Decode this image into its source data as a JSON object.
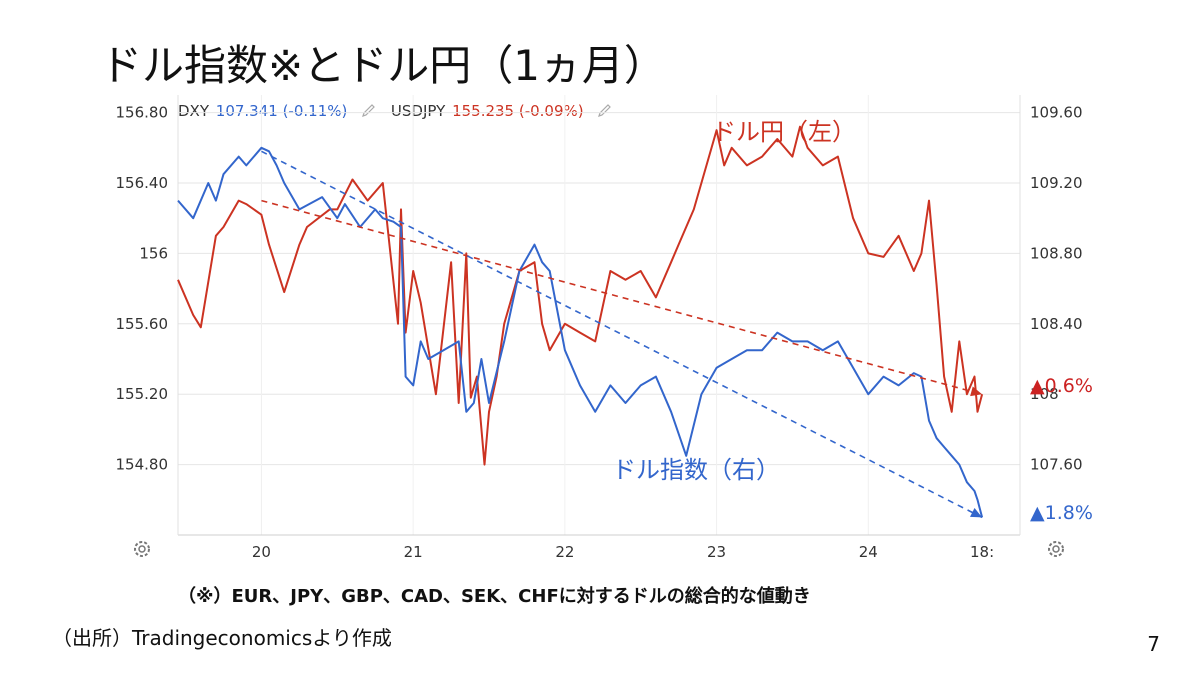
{
  "title": "ドル指数※とドル円（1ヵ月）",
  "legend": {
    "dxy_name": "DXY",
    "dxy_value": "107.341 (-0.11%)",
    "usdjpy_name": "USDJPY",
    "usdjpy_value": "155.235 (-0.09%)"
  },
  "annotations": {
    "usdjpy_label": "ドル円（左）",
    "dxy_label": "ドル指数（右）",
    "usdjpy_change": "▲0.6%",
    "dxy_change": "▲1.8%"
  },
  "footnote": "（※）EUR、JPY、GBP、CAD、SEK、CHFに対するドルの総合的な値動き",
  "source": "（出所）Tradingeconomicsより作成",
  "page_number": "7",
  "colors": {
    "dxy": "#3366cc",
    "usdjpy": "#cc3322",
    "grid": "#e6e6e6",
    "axis_text": "#333333"
  },
  "chart_data": {
    "type": "line",
    "title": "ドル指数※とドル円（1ヵ月）",
    "x_tick_labels": [
      "20",
      "21",
      "22",
      "23",
      "24",
      "18:"
    ],
    "left_axis": {
      "label": "USDJPY",
      "ticks": [
        "156.80",
        "156.40",
        "156",
        "155.60",
        "155.20",
        "154.80"
      ],
      "ylim": [
        154.4,
        156.9
      ]
    },
    "right_axis": {
      "label": "DXY",
      "ticks": [
        "109.60",
        "109.20",
        "108.80",
        "108.40",
        "108",
        "107.60"
      ],
      "ylim": [
        107.2,
        109.7
      ]
    },
    "x_range": [
      19.45,
      25.0
    ],
    "series": [
      {
        "name": "USDJPY",
        "axis": "left",
        "x": [
          19.45,
          19.55,
          19.6,
          19.7,
          19.75,
          19.85,
          19.9,
          20.0,
          20.05,
          20.15,
          20.25,
          20.3,
          20.45,
          20.5,
          20.6,
          20.7,
          20.8,
          20.9,
          20.92,
          20.95,
          21.0,
          21.05,
          21.15,
          21.25,
          21.3,
          21.35,
          21.38,
          21.42,
          21.47,
          21.5,
          21.55,
          21.6,
          21.7,
          21.8,
          21.85,
          21.9,
          22.0,
          22.1,
          22.2,
          22.3,
          22.4,
          22.5,
          22.6,
          22.7,
          22.75,
          22.85,
          22.95,
          23.0,
          23.05,
          23.1,
          23.2,
          23.3,
          23.4,
          23.5,
          23.55,
          23.6,
          23.7,
          23.8,
          23.9,
          24.0,
          24.1,
          24.2,
          24.3,
          24.35,
          24.4,
          24.45,
          24.5,
          24.55,
          24.6,
          24.65,
          24.7,
          24.72,
          24.75
        ],
        "values": [
          155.85,
          155.65,
          155.58,
          156.1,
          156.15,
          156.3,
          156.28,
          156.22,
          156.05,
          155.78,
          156.05,
          156.15,
          156.25,
          156.25,
          156.42,
          156.3,
          156.4,
          155.6,
          156.25,
          155.55,
          155.9,
          155.72,
          155.2,
          155.95,
          155.15,
          156.0,
          155.18,
          155.3,
          154.8,
          155.1,
          155.3,
          155.6,
          155.9,
          155.95,
          155.6,
          155.45,
          155.6,
          155.55,
          155.5,
          155.9,
          155.85,
          155.9,
          155.75,
          155.95,
          156.05,
          156.25,
          156.55,
          156.7,
          156.5,
          156.6,
          156.5,
          156.55,
          156.65,
          156.55,
          156.72,
          156.6,
          156.5,
          156.55,
          156.2,
          156.0,
          155.98,
          156.1,
          155.9,
          156.0,
          156.3,
          155.82,
          155.3,
          155.1,
          155.5,
          155.2,
          155.3,
          155.1,
          155.2
        ]
      },
      {
        "name": "DXY",
        "axis": "right",
        "x": [
          19.45,
          19.55,
          19.65,
          19.7,
          19.75,
          19.85,
          19.9,
          20.0,
          20.05,
          20.1,
          20.15,
          20.25,
          20.4,
          20.5,
          20.55,
          20.65,
          20.75,
          20.8,
          20.87,
          20.92,
          20.95,
          21.0,
          21.05,
          21.1,
          21.2,
          21.3,
          21.35,
          21.4,
          21.45,
          21.5,
          21.6,
          21.7,
          21.8,
          21.85,
          21.9,
          22.0,
          22.1,
          22.2,
          22.3,
          22.4,
          22.5,
          22.6,
          22.7,
          22.8,
          22.9,
          23.0,
          23.1,
          23.2,
          23.3,
          23.4,
          23.5,
          23.6,
          23.7,
          23.8,
          23.9,
          24.0,
          24.1,
          24.2,
          24.3,
          24.35,
          24.4,
          24.45,
          24.5,
          24.55,
          24.6,
          24.65,
          24.7,
          24.72,
          24.75
        ],
        "values": [
          109.1,
          109.0,
          109.2,
          109.1,
          109.25,
          109.35,
          109.3,
          109.4,
          109.38,
          109.3,
          109.2,
          109.05,
          109.12,
          109.0,
          109.08,
          108.95,
          109.05,
          109.0,
          108.98,
          108.95,
          108.1,
          108.05,
          108.3,
          108.2,
          108.25,
          108.3,
          107.9,
          107.95,
          108.2,
          107.95,
          108.3,
          108.7,
          108.85,
          108.75,
          108.7,
          108.25,
          108.05,
          107.9,
          108.05,
          107.95,
          108.05,
          108.1,
          107.9,
          107.65,
          108.0,
          108.15,
          108.2,
          108.25,
          108.25,
          108.35,
          108.3,
          108.3,
          108.25,
          108.3,
          108.15,
          108.0,
          108.1,
          108.05,
          108.12,
          108.1,
          107.85,
          107.75,
          107.7,
          107.65,
          107.6,
          107.5,
          107.45,
          107.4,
          107.3
        ]
      }
    ],
    "trend_lines": [
      {
        "series": "USDJPY",
        "axis": "left",
        "from": [
          20.0,
          156.3
        ],
        "to": [
          24.75,
          155.2
        ],
        "change": "▲0.6%"
      },
      {
        "series": "DXY",
        "axis": "right",
        "from": [
          20.0,
          109.38
        ],
        "to": [
          24.75,
          107.3
        ],
        "change": "▲1.8%"
      }
    ]
  }
}
